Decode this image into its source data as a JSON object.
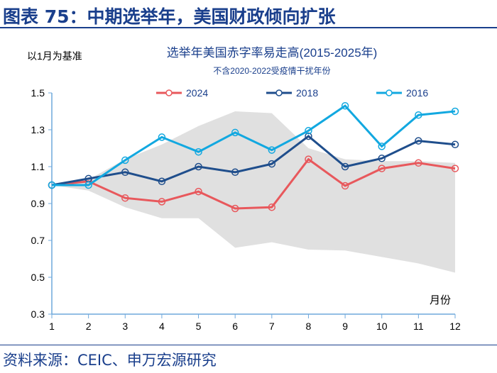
{
  "header": {
    "title": "图表 75：中期选举年，美国财政倾向扩张"
  },
  "source": "资料来源：CEIC、申万宏源研究",
  "chart_data": {
    "type": "line",
    "title": "选举年美国赤字率易走高(2015-2025年)",
    "subtitle": "不含2020-2022受疫情干扰年份",
    "ylabel": "以1月为基准",
    "xlabel": "月份",
    "x": [
      1,
      2,
      3,
      4,
      5,
      6,
      7,
      8,
      9,
      10,
      11,
      12
    ],
    "ylim": [
      0.3,
      1.5
    ],
    "yticks": [
      "0.3",
      "0.5",
      "0.7",
      "0.9",
      "1.1",
      "1.3",
      "1.5"
    ],
    "legend": "top",
    "grid": false,
    "series": [
      {
        "name": "2024",
        "color": "#e8585c",
        "values": [
          1.0,
          1.02,
          0.93,
          0.91,
          0.965,
          0.873,
          0.88,
          1.14,
          0.996,
          1.09,
          1.12,
          1.09
        ]
      },
      {
        "name": "2018",
        "color": "#1f4e8c",
        "values": [
          1.0,
          1.035,
          1.07,
          1.02,
          1.1,
          1.07,
          1.115,
          1.265,
          1.1,
          1.145,
          1.24,
          1.22
        ]
      },
      {
        "name": "2016",
        "color": "#12a8e0",
        "values": [
          1.0,
          1.0,
          1.135,
          1.26,
          1.18,
          1.285,
          1.19,
          1.295,
          1.43,
          1.21,
          1.38,
          1.4
        ]
      }
    ],
    "band": {
      "color": "#e0e0e0",
      "upper": [
        1.0,
        1.03,
        1.14,
        1.22,
        1.32,
        1.4,
        1.39,
        1.2,
        1.14,
        1.13,
        1.13,
        1.12
      ],
      "lower": [
        1.0,
        0.97,
        0.88,
        0.82,
        0.82,
        0.66,
        0.69,
        0.65,
        0.645,
        0.61,
        0.575,
        0.525
      ]
    }
  }
}
